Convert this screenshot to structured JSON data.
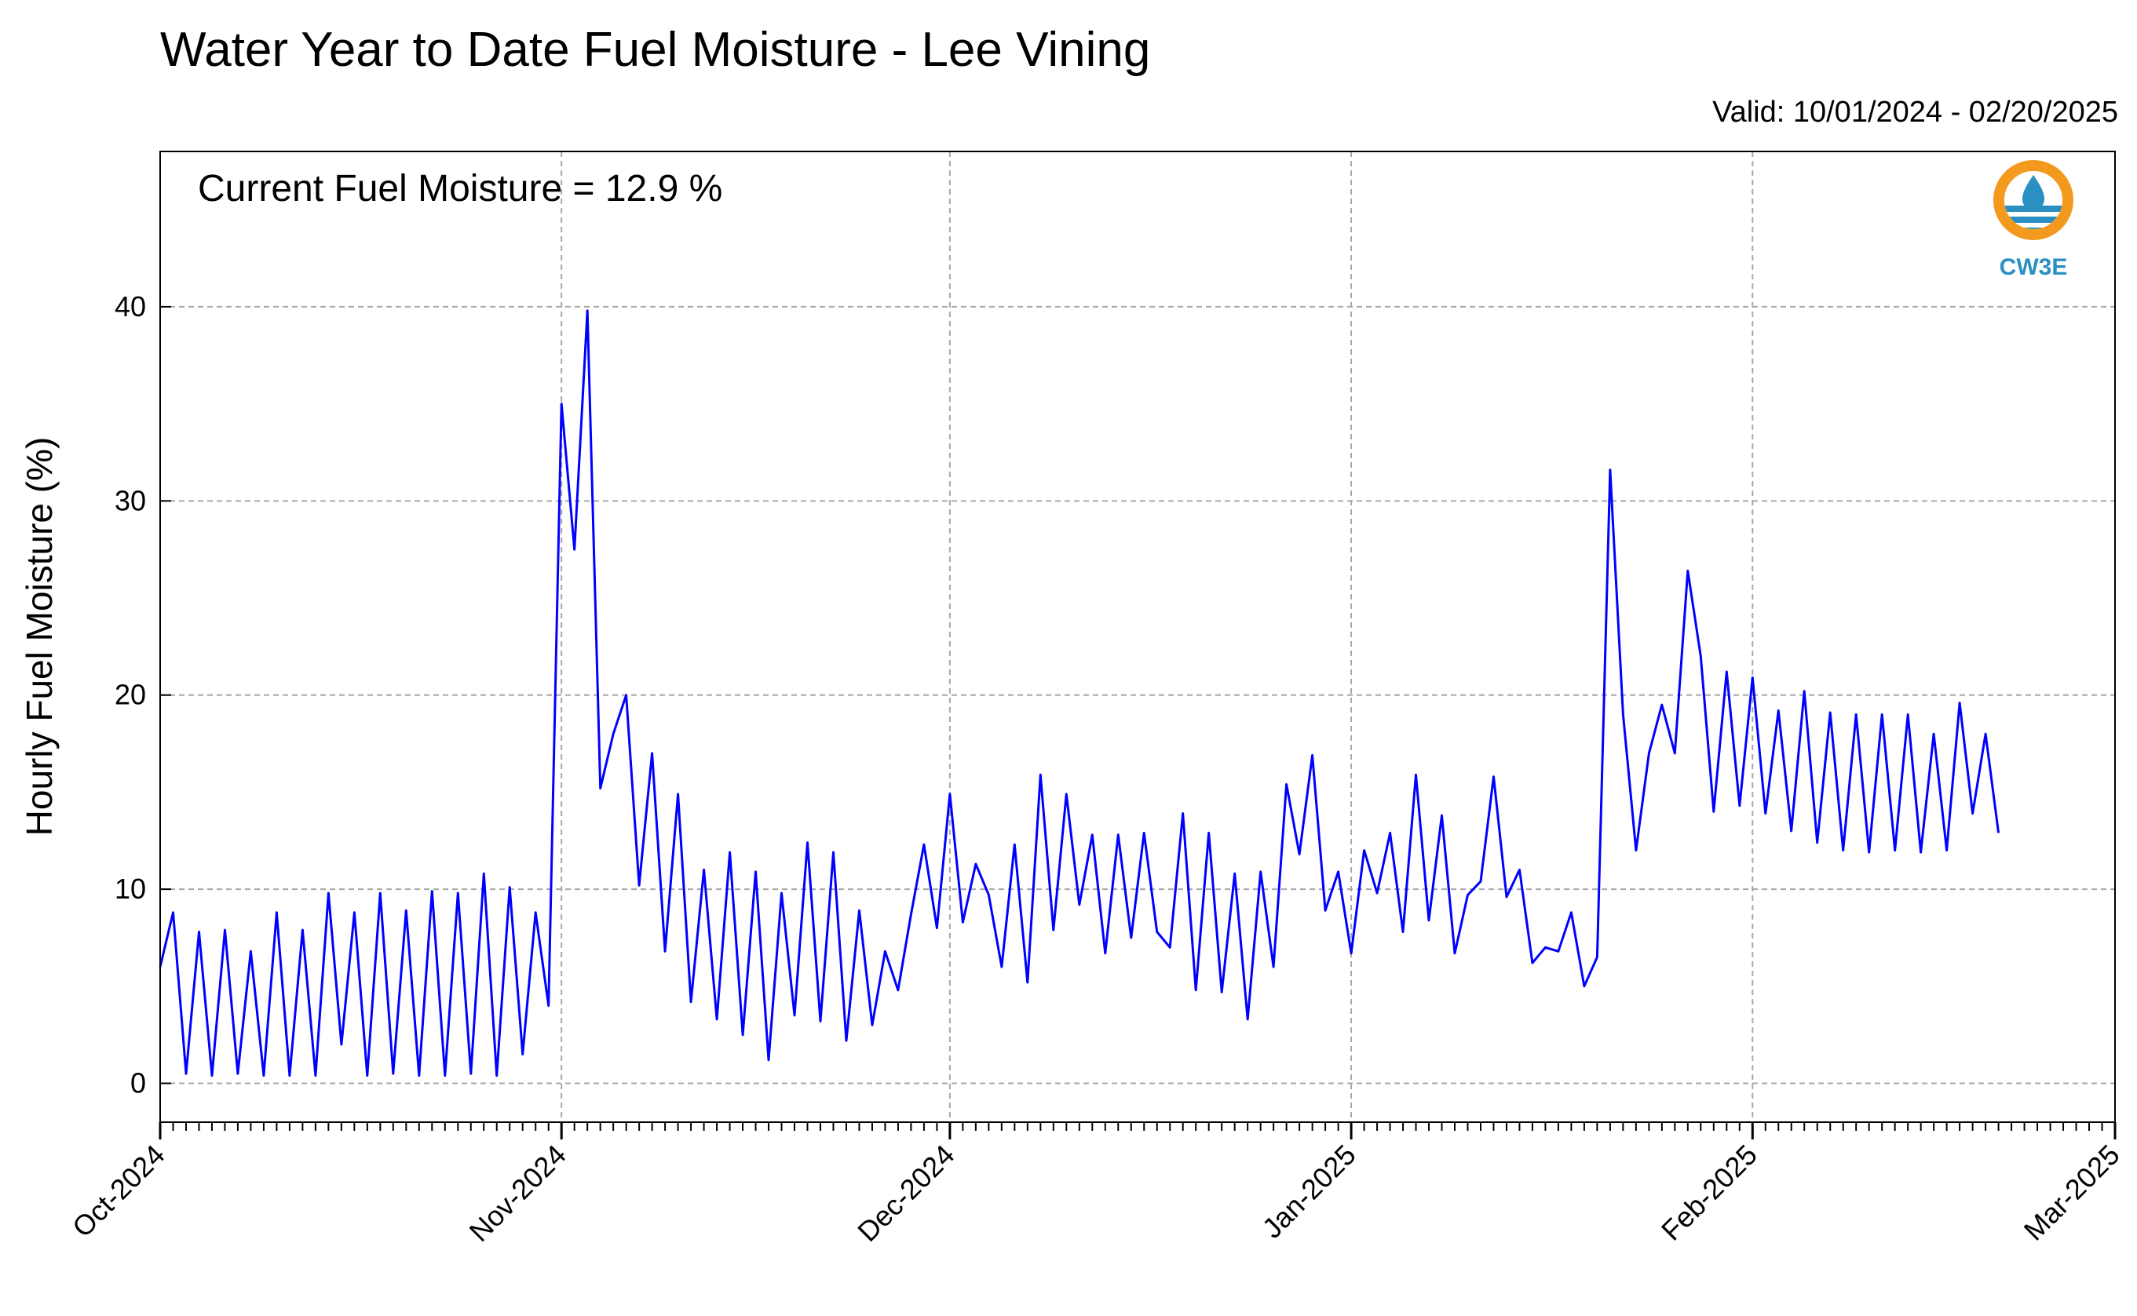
{
  "chart_data": {
    "type": "line",
    "title": "Water Year to Date Fuel Moisture - Lee Vining",
    "subtitle": "Valid: 10/01/2024 - 02/20/2025",
    "annotation": "Current Fuel Moisture = 12.9 %",
    "xlabel": "",
    "ylabel": "Hourly Fuel Moisture (%)",
    "x_range": [
      "2024-10-01",
      "2025-03-01"
    ],
    "ylim": [
      -2,
      48
    ],
    "yticks": [
      0,
      10,
      20,
      30,
      40
    ],
    "x_tick_labels": [
      "Oct-2024",
      "Nov-2024",
      "Dec-2024",
      "Jan-2025",
      "Feb-2025",
      "Mar-2025"
    ],
    "grid": true,
    "line_color": "#0000ff",
    "series": [
      {
        "points": [
          [
            "2024-10-01",
            6.0
          ],
          [
            "2024-10-02",
            8.8
          ],
          [
            "2024-10-03",
            0.5
          ],
          [
            "2024-10-04",
            7.8
          ],
          [
            "2024-10-05",
            0.4
          ],
          [
            "2024-10-06",
            7.9
          ],
          [
            "2024-10-07",
            0.5
          ],
          [
            "2024-10-08",
            6.8
          ],
          [
            "2024-10-09",
            0.4
          ],
          [
            "2024-10-10",
            8.8
          ],
          [
            "2024-10-11",
            0.4
          ],
          [
            "2024-10-12",
            7.9
          ],
          [
            "2024-10-13",
            0.4
          ],
          [
            "2024-10-14",
            9.8
          ],
          [
            "2024-10-15",
            2.0
          ],
          [
            "2024-10-16",
            8.8
          ],
          [
            "2024-10-17",
            0.4
          ],
          [
            "2024-10-18",
            9.8
          ],
          [
            "2024-10-19",
            0.5
          ],
          [
            "2024-10-20",
            8.9
          ],
          [
            "2024-10-21",
            0.4
          ],
          [
            "2024-10-22",
            9.9
          ],
          [
            "2024-10-23",
            0.4
          ],
          [
            "2024-10-24",
            9.8
          ],
          [
            "2024-10-25",
            0.5
          ],
          [
            "2024-10-26",
            10.8
          ],
          [
            "2024-10-27",
            0.4
          ],
          [
            "2024-10-28",
            10.1
          ],
          [
            "2024-10-29",
            1.5
          ],
          [
            "2024-10-30",
            8.8
          ],
          [
            "2024-10-31",
            4.0
          ],
          [
            "2024-11-01",
            35.0
          ],
          [
            "2024-11-02",
            27.5
          ],
          [
            "2024-11-03",
            39.8
          ],
          [
            "2024-11-04",
            15.2
          ],
          [
            "2024-11-05",
            18.0
          ],
          [
            "2024-11-06",
            20.0
          ],
          [
            "2024-11-07",
            10.2
          ],
          [
            "2024-11-08",
            17.0
          ],
          [
            "2024-11-09",
            6.8
          ],
          [
            "2024-11-10",
            14.9
          ],
          [
            "2024-11-11",
            4.2
          ],
          [
            "2024-11-12",
            11.0
          ],
          [
            "2024-11-13",
            3.3
          ],
          [
            "2024-11-14",
            11.9
          ],
          [
            "2024-11-15",
            2.5
          ],
          [
            "2024-11-16",
            10.9
          ],
          [
            "2024-11-17",
            1.2
          ],
          [
            "2024-11-18",
            9.8
          ],
          [
            "2024-11-19",
            3.5
          ],
          [
            "2024-11-20",
            12.4
          ],
          [
            "2024-11-21",
            3.2
          ],
          [
            "2024-11-22",
            11.9
          ],
          [
            "2024-11-23",
            2.2
          ],
          [
            "2024-11-24",
            8.9
          ],
          [
            "2024-11-25",
            3.0
          ],
          [
            "2024-11-26",
            6.8
          ],
          [
            "2024-11-27",
            4.8
          ],
          [
            "2024-11-28",
            8.7
          ],
          [
            "2024-11-29",
            12.3
          ],
          [
            "2024-11-30",
            8.0
          ],
          [
            "2024-12-01",
            14.9
          ],
          [
            "2024-12-02",
            8.3
          ],
          [
            "2024-12-03",
            11.3
          ],
          [
            "2024-12-04",
            9.7
          ],
          [
            "2024-12-05",
            6.0
          ],
          [
            "2024-12-06",
            12.3
          ],
          [
            "2024-12-07",
            5.2
          ],
          [
            "2024-12-08",
            15.9
          ],
          [
            "2024-12-09",
            7.9
          ],
          [
            "2024-12-10",
            14.9
          ],
          [
            "2024-12-11",
            9.2
          ],
          [
            "2024-12-12",
            12.8
          ],
          [
            "2024-12-13",
            6.7
          ],
          [
            "2024-12-14",
            12.8
          ],
          [
            "2024-12-15",
            7.5
          ],
          [
            "2024-12-16",
            12.9
          ],
          [
            "2024-12-17",
            7.8
          ],
          [
            "2024-12-18",
            7.0
          ],
          [
            "2024-12-19",
            13.9
          ],
          [
            "2024-12-20",
            4.8
          ],
          [
            "2024-12-21",
            12.9
          ],
          [
            "2024-12-22",
            4.7
          ],
          [
            "2024-12-23",
            10.8
          ],
          [
            "2024-12-24",
            3.3
          ],
          [
            "2024-12-25",
            10.9
          ],
          [
            "2024-12-26",
            6.0
          ],
          [
            "2024-12-27",
            15.4
          ],
          [
            "2024-12-28",
            11.8
          ],
          [
            "2024-12-29",
            16.9
          ],
          [
            "2024-12-30",
            8.9
          ],
          [
            "2024-12-31",
            10.9
          ],
          [
            "2025-01-01",
            6.7
          ],
          [
            "2025-01-02",
            12.0
          ],
          [
            "2025-01-03",
            9.8
          ],
          [
            "2025-01-04",
            12.9
          ],
          [
            "2025-01-05",
            7.8
          ],
          [
            "2025-01-06",
            15.9
          ],
          [
            "2025-01-07",
            8.4
          ],
          [
            "2025-01-08",
            13.8
          ],
          [
            "2025-01-09",
            6.7
          ],
          [
            "2025-01-10",
            9.7
          ],
          [
            "2025-01-11",
            10.4
          ],
          [
            "2025-01-12",
            15.8
          ],
          [
            "2025-01-13",
            9.6
          ],
          [
            "2025-01-14",
            11.0
          ],
          [
            "2025-01-15",
            6.2
          ],
          [
            "2025-01-16",
            7.0
          ],
          [
            "2025-01-17",
            6.8
          ],
          [
            "2025-01-18",
            8.8
          ],
          [
            "2025-01-19",
            5.0
          ],
          [
            "2025-01-20",
            6.5
          ],
          [
            "2025-01-21",
            31.6
          ],
          [
            "2025-01-22",
            19.0
          ],
          [
            "2025-01-23",
            12.0
          ],
          [
            "2025-01-24",
            17.0
          ],
          [
            "2025-01-25",
            19.5
          ],
          [
            "2025-01-26",
            17.0
          ],
          [
            "2025-01-27",
            26.4
          ],
          [
            "2025-01-28",
            22.0
          ],
          [
            "2025-01-29",
            14.0
          ],
          [
            "2025-01-30",
            21.2
          ],
          [
            "2025-01-31",
            14.3
          ],
          [
            "2025-02-01",
            20.9
          ],
          [
            "2025-02-02",
            13.9
          ],
          [
            "2025-02-03",
            19.2
          ],
          [
            "2025-02-04",
            13.0
          ],
          [
            "2025-02-05",
            20.2
          ],
          [
            "2025-02-06",
            12.4
          ],
          [
            "2025-02-07",
            19.1
          ],
          [
            "2025-02-08",
            12.0
          ],
          [
            "2025-02-09",
            19.0
          ],
          [
            "2025-02-10",
            11.9
          ],
          [
            "2025-02-11",
            19.0
          ],
          [
            "2025-02-12",
            12.0
          ],
          [
            "2025-02-13",
            19.0
          ],
          [
            "2025-02-14",
            11.9
          ],
          [
            "2025-02-15",
            18.0
          ],
          [
            "2025-02-16",
            12.0
          ],
          [
            "2025-02-17",
            19.6
          ],
          [
            "2025-02-18",
            13.9
          ],
          [
            "2025-02-19",
            18.0
          ],
          [
            "2025-02-20",
            12.9
          ]
        ]
      }
    ]
  },
  "logo": {
    "text": "CW3E",
    "orange": "#f39a1e",
    "blue": "#2a8fc1"
  }
}
